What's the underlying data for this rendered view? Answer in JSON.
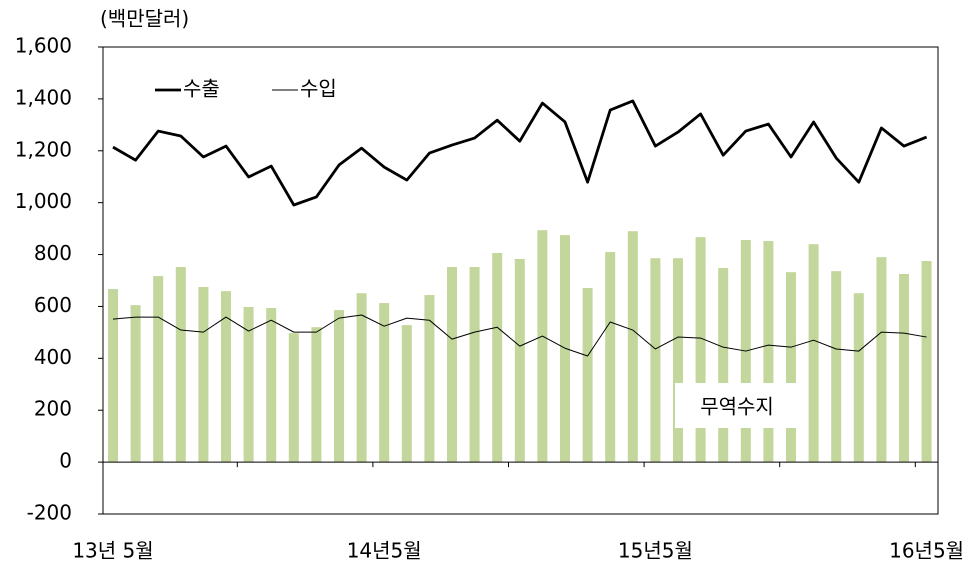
{
  "chart_data": {
    "type": "bar",
    "unit_label": "(백만달러)",
    "categories": [
      "13년 5월",
      null,
      null,
      null,
      null,
      null,
      null,
      null,
      null,
      null,
      null,
      null,
      "14년5월",
      null,
      null,
      null,
      null,
      null,
      null,
      null,
      null,
      null,
      null,
      null,
      "15년5월",
      null,
      null,
      null,
      null,
      null,
      null,
      null,
      null,
      null,
      null,
      null,
      "16년5월"
    ],
    "series": [
      {
        "name": "수출",
        "type": "line",
        "color": "#000000",
        "values": [
          1214,
          1164,
          1276,
          1257,
          1176,
          1218,
          1099,
          1141,
          991,
          1022,
          1145,
          1210,
          1137,
          1087,
          1191,
          1222,
          1249,
          1318,
          1237,
          1384,
          1311,
          1079,
          1357,
          1392,
          1218,
          1272,
          1342,
          1183,
          1276,
          1303,
          1176,
          1311,
          1172,
          1079,
          1288,
          1218,
          1253
        ]
      },
      {
        "name": "수입",
        "type": "line",
        "color": "#000000",
        "values": [
          551,
          559,
          559,
          509,
          501,
          559,
          505,
          547,
          501,
          501,
          555,
          567,
          524,
          555,
          547,
          474,
          501,
          520,
          447,
          486,
          439,
          409,
          540,
          509,
          436,
          482,
          478,
          443,
          428,
          451,
          443,
          470,
          436,
          428,
          501,
          497,
          482
        ]
      },
      {
        "name": "무역수지",
        "type": "bar",
        "color": "#c3d69b",
        "values": [
          667,
          605,
          717,
          752,
          675,
          659,
          598,
          594,
          497,
          520,
          586,
          651,
          613,
          528,
          644,
          752,
          752,
          806,
          783,
          894,
          875,
          671,
          810,
          890,
          786,
          786,
          867,
          748,
          856,
          852,
          732,
          840,
          736,
          651,
          790,
          725,
          775
        ]
      }
    ],
    "ylim": [
      -200,
      1600
    ],
    "yticks": [
      -200,
      0,
      200,
      400,
      600,
      800,
      {
        "value": 1000,
        "label": "1,000"
      },
      {
        "value": 1200,
        "label": "1,200"
      },
      {
        "value": 1400,
        "label": "1,400"
      },
      {
        "value": 1600,
        "label": "1,600"
      }
    ]
  }
}
